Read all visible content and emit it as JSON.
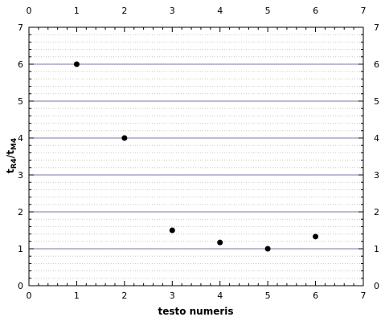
{
  "chart_data": {
    "type": "scatter",
    "title": "",
    "xlabel": "testo numeris",
    "ylabel_main": "t",
    "ylabel_sub1": "R4",
    "ylabel_sep": "/t",
    "ylabel_sub2": "M4",
    "xlim": [
      0,
      7
    ],
    "ylim": [
      0,
      7
    ],
    "x_ticks": [
      0,
      1,
      2,
      3,
      4,
      5,
      6,
      7
    ],
    "y_ticks": [
      0,
      1,
      2,
      3,
      4,
      5,
      6,
      7
    ],
    "x_tick_labels": [
      "0",
      "1",
      "2",
      "3",
      "4",
      "5",
      "6",
      "7"
    ],
    "y_tick_labels": [
      "0",
      "1",
      "2",
      "3",
      "4",
      "5",
      "6",
      "7"
    ],
    "grid_major": true,
    "grid_minor": true,
    "legend": "none",
    "colors": {
      "marker": "#000000",
      "major_grid": "#7a7aa8",
      "minor_grid": "#c8c8c8"
    },
    "series": [
      {
        "x": [
          1,
          2,
          3,
          4,
          5,
          6
        ],
        "y": [
          6.0,
          4.0,
          1.5,
          1.17,
          1.0,
          1.33
        ]
      }
    ]
  }
}
